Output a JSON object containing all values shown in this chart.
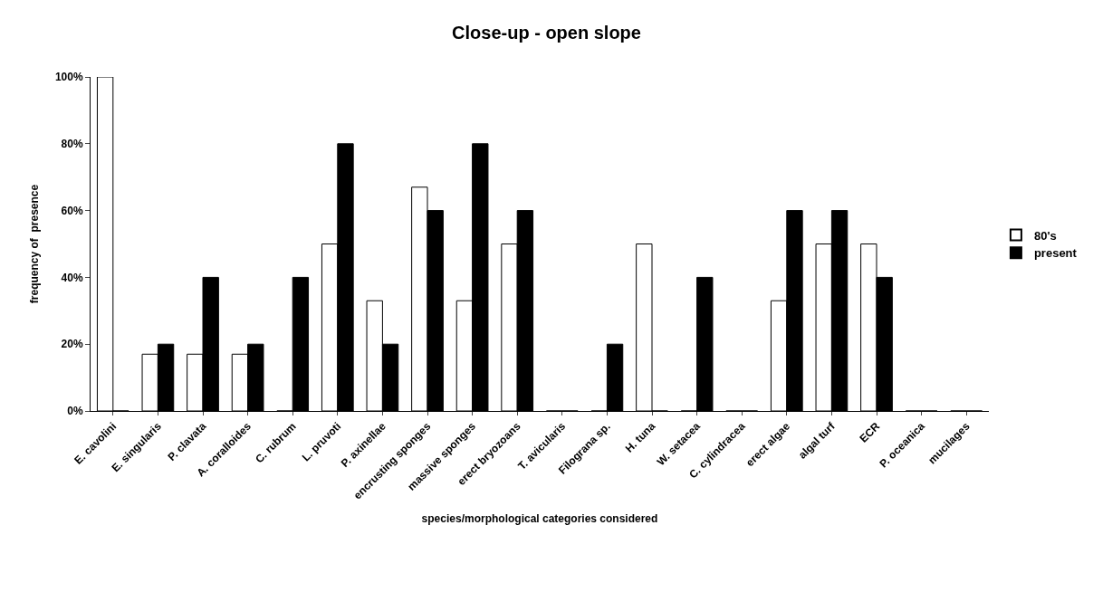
{
  "chart_data": {
    "type": "bar",
    "title": "Close-up - open slope",
    "xlabel": "species/morphological categories considered",
    "ylabel": "frequency of  presence",
    "categories": [
      "E. cavolini",
      "E. singularis",
      "P. clavata",
      "A. coralloides",
      "C. rubrum",
      "L. pruvoti",
      "P. axinellae",
      "encrusting sponges",
      "massive sponges",
      "erect bryozoans",
      "T. avicularis",
      "Filograna sp.",
      "H. tuna",
      "W. setacea",
      "C. cylindracea",
      "erect algae",
      "algal turf",
      "ECR",
      "P. oceanica",
      "mucilages"
    ],
    "series": [
      {
        "name": "80's",
        "color": "#ffffff",
        "values": [
          100,
          17,
          17,
          17,
          0,
          50,
          33,
          67,
          33,
          50,
          0,
          0,
          50,
          0,
          0,
          33,
          50,
          50,
          0,
          0
        ]
      },
      {
        "name": "present",
        "color": "#000000",
        "values": [
          0,
          20,
          40,
          20,
          40,
          80,
          20,
          60,
          80,
          60,
          0,
          20,
          0,
          40,
          0,
          60,
          60,
          40,
          0,
          0
        ]
      }
    ],
    "ylim": [
      0,
      100
    ],
    "yticks": [
      {
        "value": 0,
        "label": "0%"
      },
      {
        "value": 20,
        "label": "20%"
      },
      {
        "value": 40,
        "label": "40%"
      },
      {
        "value": 60,
        "label": "60%"
      },
      {
        "value": 80,
        "label": "80%"
      },
      {
        "value": 100,
        "label": "100%"
      }
    ],
    "legend": "right"
  }
}
